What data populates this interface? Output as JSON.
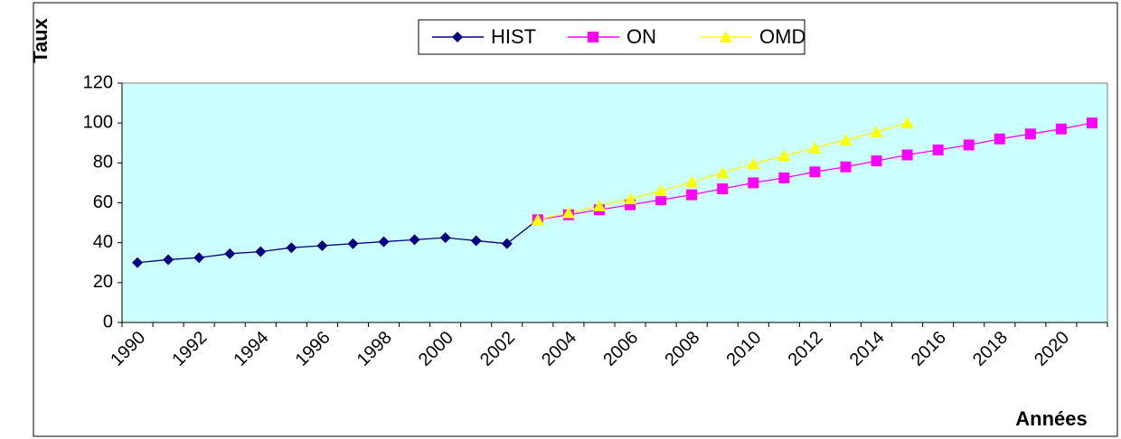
{
  "chart_data": {
    "type": "line",
    "y_label": "Taux",
    "x_label": "Années",
    "categories": [
      "1990",
      null,
      "1992",
      null,
      "1994",
      null,
      "1996",
      null,
      "1998",
      null,
      "2000",
      null,
      "2002",
      null,
      "2004",
      null,
      "2006",
      null,
      "2008",
      null,
      "2010",
      null,
      "2012",
      null,
      "2014",
      null,
      "2016",
      null,
      "2018",
      null,
      "2020",
      null
    ],
    "series": [
      {
        "name": "HIST",
        "color": "#000080",
        "marker": "diamond",
        "values": [
          30,
          31.5,
          32.5,
          34.5,
          35.5,
          37.5,
          38.5,
          39.5,
          40.5,
          41.5,
          42.5,
          41,
          39.5,
          51.5,
          null,
          null,
          null,
          null,
          null,
          null,
          null,
          null,
          null,
          null,
          null,
          null,
          null,
          null,
          null,
          null,
          null,
          null
        ]
      },
      {
        "name": "ON",
        "color": "#ff00ff",
        "marker": "square",
        "values": [
          null,
          null,
          null,
          null,
          null,
          null,
          null,
          null,
          null,
          null,
          null,
          null,
          null,
          51.5,
          54,
          56.5,
          59,
          61.5,
          64,
          67,
          70,
          72.5,
          75.5,
          78,
          81,
          84,
          86.5,
          89,
          92,
          94.5,
          97,
          100
        ]
      },
      {
        "name": "OMD",
        "color": "#ffff00",
        "marker": "triangle",
        "values": [
          null,
          null,
          null,
          null,
          null,
          null,
          null,
          null,
          null,
          null,
          null,
          null,
          null,
          51.5,
          55,
          58.5,
          62,
          66,
          70.5,
          75,
          79.5,
          83.5,
          87.5,
          91.5,
          95.5,
          100,
          null,
          null,
          null,
          null,
          null,
          null
        ]
      }
    ],
    "ylim": [
      0,
      120
    ],
    "yticks": [
      0,
      20,
      40,
      60,
      80,
      100,
      120
    ],
    "grid": false,
    "legend": "top",
    "plot_background": "#ccffff"
  }
}
